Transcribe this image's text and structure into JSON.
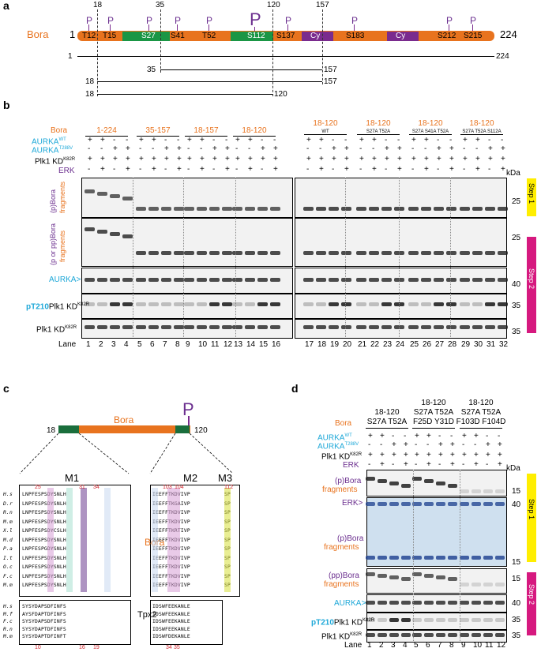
{
  "panel_labels": {
    "a": "a",
    "b": "b",
    "c": "c",
    "d": "d"
  },
  "panel_a": {
    "protein": "Bora",
    "start": "1",
    "end": "224",
    "dash_positions": [
      "18",
      "35",
      "120",
      "157"
    ],
    "sites": [
      "T12",
      "T15",
      "S27",
      "S41",
      "T52",
      "S112",
      "S137",
      "S183",
      "S212",
      "S215"
    ],
    "domains": [
      "Cy",
      "Cy"
    ],
    "p_label": "P",
    "fragments": [
      {
        "start": "1",
        "end": "224"
      },
      {
        "start": "35",
        "end": "157"
      },
      {
        "start": "18",
        "end": "157"
      },
      {
        "start": "18",
        "end": "120"
      }
    ]
  },
  "panel_b": {
    "row_labels": {
      "bora": "Bora",
      "aurka_wt": "AURKA",
      "wt_sup": "WT",
      "aurka_mut": "AURKA",
      "mut_sup": "T288V",
      "plk1": "Plk1 KD",
      "plk1_sup": "K82R",
      "erk": "ERK"
    },
    "groups": [
      {
        "name": "1-224",
        "sub": ""
      },
      {
        "name": "35-157",
        "sub": ""
      },
      {
        "name": "18-157",
        "sub": ""
      },
      {
        "name": "18-120",
        "sub": ""
      },
      {
        "name": "18-120",
        "sub": "WT"
      },
      {
        "name": "18-120",
        "sub": "S27A T52A"
      },
      {
        "name": "18-120",
        "sub": "S27A S41A T52A"
      },
      {
        "name": "18-120",
        "sub": "S27A T52A S112A"
      }
    ],
    "aurka_wt_pattern": [
      "+",
      "+",
      "-",
      "-"
    ],
    "aurka_mut_pattern": [
      "-",
      "-",
      "+",
      "+"
    ],
    "plk1_pattern": [
      "+",
      "+",
      "+",
      "+"
    ],
    "erk_pattern": [
      "-",
      "+",
      "-",
      "+"
    ],
    "blot_labels": {
      "p1a": "(p)Bora",
      "p1b": "fragments",
      "p2a": "(p or pp)Bora",
      "p2b": "fragments",
      "aurka": "AURKA>",
      "pt210": "pT210",
      "pt210_rest": "Plk1 KD",
      "pt210_sup": "K82R",
      "plk1": "Plk1 KD",
      "plk1_sup": "K82R"
    },
    "kda": "kDa",
    "markers": [
      "25",
      "25",
      "40",
      "35",
      "35"
    ],
    "steps": [
      "Step 1",
      "Step 2"
    ],
    "lane_label": "Lane",
    "lanes": [
      "1",
      "2",
      "3",
      "4",
      "5",
      "6",
      "7",
      "8",
      "9",
      "10",
      "11",
      "12",
      "13",
      "14",
      "15",
      "16",
      "17",
      "18",
      "19",
      "20",
      "21",
      "22",
      "23",
      "24",
      "25",
      "26",
      "27",
      "28",
      "29",
      "30",
      "31",
      "32"
    ]
  },
  "panel_c": {
    "construct_start": "18",
    "construct_end": "120",
    "protein": "Bora",
    "p_label": "P",
    "motifs": [
      "M1",
      "M2",
      "M3"
    ],
    "bora_species": [
      "H.s",
      "D.r",
      "R.n",
      "M.m",
      "X.l",
      "M.d",
      "P.a",
      "I.t",
      "O.c",
      "F.c",
      "M.m"
    ],
    "m1_seqs": [
      "LNPFESPSDYSNLH",
      "LNPFESPSDYSNLH",
      "LNPFESPSDYSNLH",
      "LNPFESPSDYSNLH",
      "LNPFESPSDYCSLH",
      "LNPFESPSDYSNLH",
      "LNPFESPGDYSNLH",
      "LNPFESPSDYSNLH",
      "LNPFESPSDYSNLH",
      "LNPFESPSDYSNLH",
      "LNPFESPSDYSNLH"
    ],
    "m2_seqs": [
      "IEEFFTKDVIVP",
      "IEEFFTKGAIVP",
      "IEEFFTKDVIVP",
      "IEEFFTKDVIVP",
      "IEEFFTKRTIVP",
      "IEEFFTKDVIVP",
      "IEEFFTKDVIVP",
      "IEEFFTKDVIVP",
      "IEEFFTKDVIVP",
      "IEEFFTKDVIVP",
      "IEEFFTKDVIVP"
    ],
    "m3_seqs": [
      "SP",
      "SP",
      "SP",
      "SP",
      "SP",
      "SP",
      "SP",
      "SP",
      "SP",
      "SP",
      "SP"
    ],
    "bora_top_nums": [
      "25",
      "31",
      "34",
      "103",
      "104",
      "112"
    ],
    "tpx2_label": "Tpx2",
    "tpx2_species": [
      "H.s",
      "M.f",
      "F.c",
      "R.n",
      "M.m"
    ],
    "tpx2_m1": [
      "SYSYDAPSDFINFS",
      "AYSFDAPTDFINFS",
      "SYSYDAPSDFINFS",
      "SYSYDAPTDFINFS",
      "SYSYDAPTDFINFT"
    ],
    "tpx2_m2": [
      "IDSWFEEKANLE",
      "IDSWFEEKANLE",
      "IDSWFEEKANLE",
      "IDSWFEEKANLE",
      "IDSWFDEKANLE"
    ],
    "tpx2_bottom_nums": [
      "10",
      "16",
      "19",
      "34",
      "35"
    ]
  },
  "panel_d": {
    "row_labels": {
      "bora": "Bora",
      "aurka_wt": "AURKA",
      "wt_sup": "WT",
      "aurka_mut": "AURKA",
      "mut_sup": "T288V",
      "plk1": "Plk1 KD",
      "plk1_sup": "K82R",
      "erk": "ERK"
    },
    "groups": [
      {
        "l1": "18-120",
        "l2": "S27A T52A",
        "l3": ""
      },
      {
        "l1": "18-120",
        "l2": "S27A T52A",
        "l3": "F25D Y31D"
      },
      {
        "l1": "18-120",
        "l2": "S27A T52A",
        "l3": "F103D F104D"
      }
    ],
    "blot_labels": {
      "p1a": "(p)Bora",
      "p1b": "fragments",
      "erk": "ERK>",
      "p2a": "(p)Bora",
      "p2b": "fragments",
      "pp_a": "(pp)Bora",
      "pp_b": "fragments",
      "aurka": "AURKA>",
      "pt210": "pT210",
      "pt210_rest": "Plk1 KD",
      "pt210_sup": "K82R",
      "plk1": "Plk1 KD",
      "plk1_sup": "K82R"
    },
    "kda": "kDa",
    "markers": [
      "15",
      "40",
      "15",
      "15",
      "40",
      "35",
      "35"
    ],
    "steps": [
      "Step 1",
      "Step 2"
    ],
    "lane_label": "Lane",
    "lanes": [
      "1",
      "2",
      "3",
      "4",
      "5",
      "6",
      "7",
      "8",
      "9",
      "10",
      "11",
      "12"
    ]
  },
  "colors": {
    "orange": "#e8731e",
    "green": "#1a9645",
    "purple": "#7a2b8e",
    "cyan": "#1ea8d8",
    "yellow": "#ffee00",
    "magenta": "#d6197f"
  }
}
